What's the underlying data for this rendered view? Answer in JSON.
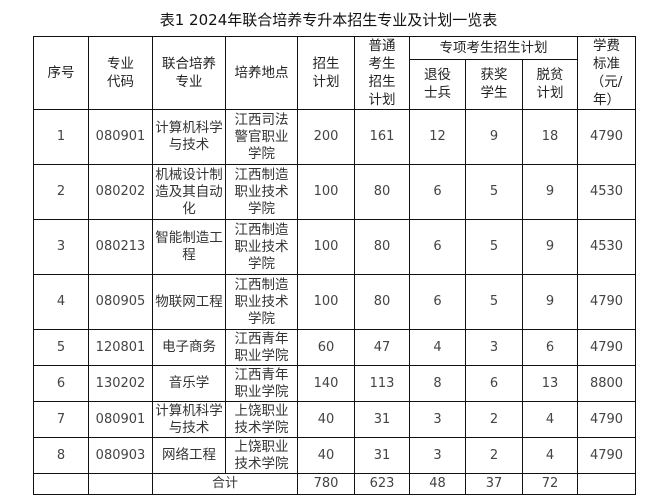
{
  "title": "表1 2024年联合培养专升本招生专业及计划一览表",
  "headers": {
    "index": "序号",
    "code": "专业代码",
    "major": "联合培养专业",
    "location": "培养地点",
    "plan": "招生计划",
    "regular": "普通考生招生计划",
    "special": "专项考生招生计划",
    "veteran": "退役士兵",
    "award": "获奖学生",
    "poverty": "脱贫计划",
    "fee": "学费标准（元/年）"
  },
  "rows": [
    {
      "index": "1",
      "code": "080901",
      "major": "计算机科学与技术",
      "location": "江西司法警官职业学院",
      "plan": "200",
      "regular": "161",
      "veteran": "12",
      "award": "9",
      "poverty": "18",
      "fee": "4790"
    },
    {
      "index": "2",
      "code": "080202",
      "major": "机械设计制造及其自动化",
      "location": "江西制造职业技术学院",
      "plan": "100",
      "regular": "80",
      "veteran": "6",
      "award": "5",
      "poverty": "9",
      "fee": "4530"
    },
    {
      "index": "3",
      "code": "080213",
      "major": "智能制造工程",
      "location": "江西制造职业技术学院",
      "plan": "100",
      "regular": "80",
      "veteran": "6",
      "award": "5",
      "poverty": "9",
      "fee": "4530"
    },
    {
      "index": "4",
      "code": "080905",
      "major": "物联网工程",
      "location": "江西制造职业技术学院",
      "plan": "100",
      "regular": "80",
      "veteran": "6",
      "award": "5",
      "poverty": "9",
      "fee": "4790"
    },
    {
      "index": "5",
      "code": "120801",
      "major": "电子商务",
      "location": "江西青年职业学院",
      "plan": "60",
      "regular": "47",
      "veteran": "4",
      "award": "3",
      "poverty": "6",
      "fee": "4790"
    },
    {
      "index": "6",
      "code": "130202",
      "major": "音乐学",
      "location": "江西青年职业学院",
      "plan": "140",
      "regular": "113",
      "veteran": "8",
      "award": "6",
      "poverty": "13",
      "fee": "8800"
    },
    {
      "index": "7",
      "code": "080901",
      "major": "计算机科学与技术",
      "location": "上饶职业技术学院",
      "plan": "40",
      "regular": "31",
      "veteran": "3",
      "award": "2",
      "poverty": "4",
      "fee": "4790"
    },
    {
      "index": "8",
      "code": "080903",
      "major": "网络工程",
      "location": "上饶职业技术学院",
      "plan": "40",
      "regular": "31",
      "veteran": "3",
      "award": "2",
      "poverty": "4",
      "fee": "4790"
    }
  ],
  "total": {
    "label": "合计",
    "plan": "780",
    "regular": "623",
    "veteran": "48",
    "award": "37",
    "poverty": "72"
  }
}
